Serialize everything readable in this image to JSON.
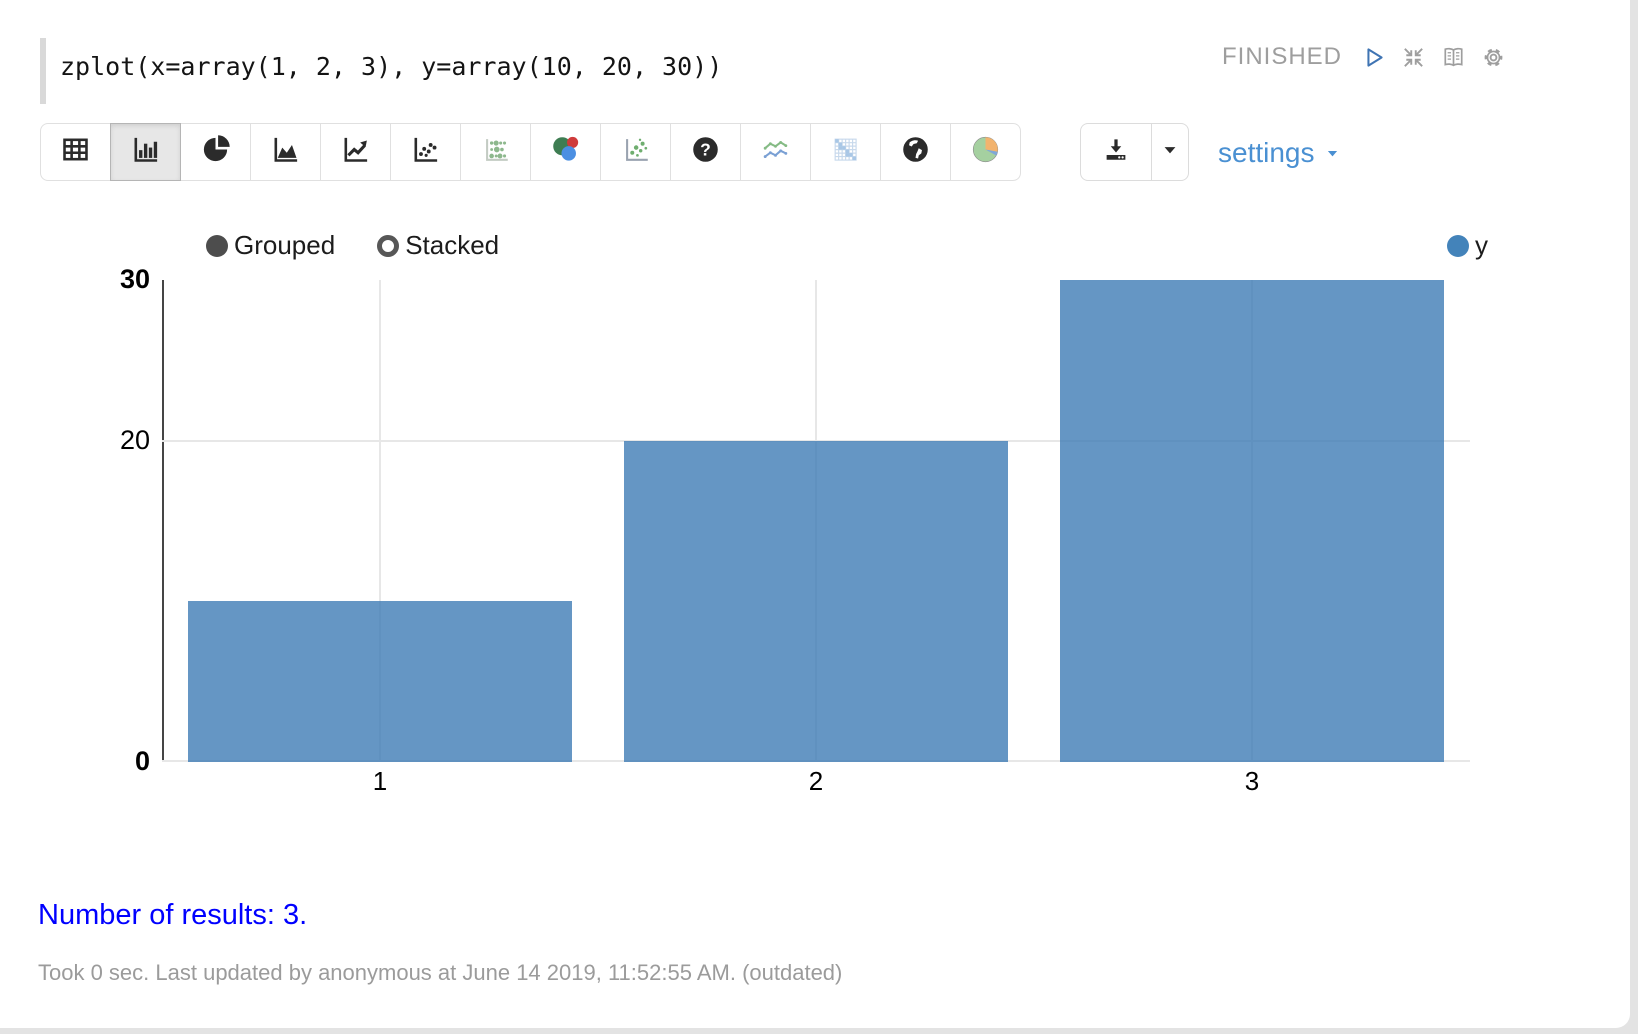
{
  "editor": {
    "code": "zplot(x=array(1, 2, 3), y=array(10, 20, 30))",
    "status": "FINISHED",
    "action_icons": [
      "play-icon",
      "collapse-icon",
      "book-icon",
      "gear-icon"
    ]
  },
  "toolbar": {
    "buttons": [
      {
        "icon": "table-icon",
        "selected": false
      },
      {
        "icon": "bar-chart-icon",
        "selected": true
      },
      {
        "icon": "pie-chart-icon",
        "selected": false
      },
      {
        "icon": "area-chart-icon",
        "selected": false
      },
      {
        "icon": "line-chart-icon",
        "selected": false
      },
      {
        "icon": "scatter-chart-icon",
        "selected": false
      },
      {
        "icon": "bubble-grid-icon",
        "selected": false
      },
      {
        "icon": "venn-diagram-icon",
        "selected": false
      },
      {
        "icon": "scatter-green-icon",
        "selected": false
      },
      {
        "icon": "help-icon",
        "selected": false
      },
      {
        "icon": "multi-line-icon",
        "selected": false
      },
      {
        "icon": "heatmap-icon",
        "selected": false
      },
      {
        "icon": "globe-icon",
        "selected": false
      },
      {
        "icon": "pie-colored-icon",
        "selected": false
      }
    ],
    "download_icons": [
      "download-icon",
      "caret-down-icon"
    ],
    "settings_label": "settings",
    "settings_caret": "caret-down-icon"
  },
  "chart_data": {
    "type": "bar",
    "categories": [
      "1",
      "2",
      "3"
    ],
    "series": [
      {
        "name": "y",
        "values": [
          10,
          20,
          30
        ]
      }
    ],
    "ylim": [
      0,
      30
    ],
    "yticks": [
      0,
      20,
      30
    ],
    "grid": true,
    "bar_color": "rgba(62,124,181,0.8)",
    "controls": [
      {
        "label": "Grouped",
        "selected": true
      },
      {
        "label": "Stacked",
        "selected": false
      }
    ],
    "legend": [
      {
        "label": "y",
        "color": "#4383ba"
      }
    ],
    "legend_position": "top-right"
  },
  "results_text": "Number of results: 3.",
  "footer_text": "Took 0 sec. Last updated by anonymous at June 14 2019, 11:52:55 AM. (outdated)",
  "colors": {
    "accent_blue": "#4a90d2",
    "results_blue": "#0000ff",
    "status_gray": "#9e9e9e",
    "bar_blue": "#6496c4",
    "legend_blue": "#4383ba",
    "control_dark": "#4d4d4d"
  }
}
